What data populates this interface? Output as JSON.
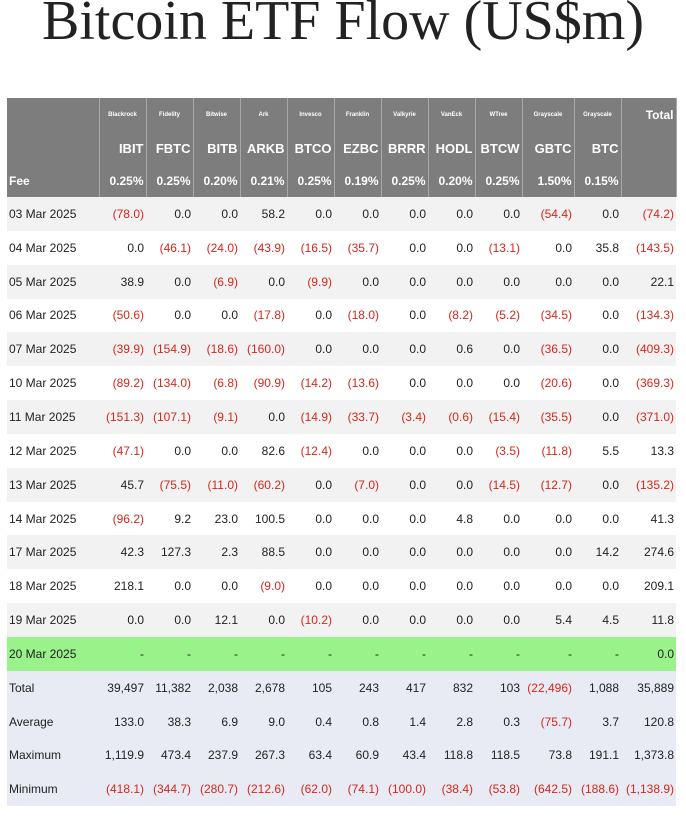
{
  "title": "Bitcoin ETF Flow (US$m)",
  "colors": {
    "header_bg": "#7d7d7d",
    "highlight_row": "#99f28a",
    "negative": "#d4271c",
    "summary_bg": "#e8ebf4"
  },
  "issuers": [
    "Blackrock",
    "Fidelity",
    "Bitwise",
    "Ark",
    "Invesco",
    "Franklin",
    "Valkyrie",
    "VanEck",
    "WTree",
    "Grayscale",
    "Grayscale"
  ],
  "total_header": "Total",
  "tickers": [
    "IBIT",
    "FBTC",
    "BITB",
    "ARKB",
    "BTCO",
    "EZBC",
    "BRRR",
    "HODL",
    "BTCW",
    "GBTC",
    "BTC"
  ],
  "fee_label": "Fee",
  "fees": [
    "0.25%",
    "0.25%",
    "0.20%",
    "0.21%",
    "0.25%",
    "0.19%",
    "0.25%",
    "0.20%",
    "0.25%",
    "1.50%",
    "0.15%"
  ],
  "rows": [
    {
      "date": "03 Mar 2025",
      "cells": [
        "(78.0)",
        "0.0",
        "0.0",
        "58.2",
        "0.0",
        "0.0",
        "0.0",
        "0.0",
        "0.0",
        "(54.4)",
        "0.0",
        "(74.2)"
      ]
    },
    {
      "date": "04 Mar 2025",
      "cells": [
        "0.0",
        "(46.1)",
        "(24.0)",
        "(43.9)",
        "(16.5)",
        "(35.7)",
        "0.0",
        "0.0",
        "(13.1)",
        "0.0",
        "35.8",
        "(143.5)"
      ]
    },
    {
      "date": "05 Mar 2025",
      "cells": [
        "38.9",
        "0.0",
        "(6.9)",
        "0.0",
        "(9.9)",
        "0.0",
        "0.0",
        "0.0",
        "0.0",
        "0.0",
        "0.0",
        "22.1"
      ]
    },
    {
      "date": "06 Mar 2025",
      "cells": [
        "(50.6)",
        "0.0",
        "0.0",
        "(17.8)",
        "0.0",
        "(18.0)",
        "0.0",
        "(8.2)",
        "(5.2)",
        "(34.5)",
        "0.0",
        "(134.3)"
      ]
    },
    {
      "date": "07 Mar 2025",
      "cells": [
        "(39.9)",
        "(154.9)",
        "(18.6)",
        "(160.0)",
        "0.0",
        "0.0",
        "0.0",
        "0.6",
        "0.0",
        "(36.5)",
        "0.0",
        "(409.3)"
      ]
    },
    {
      "date": "10 Mar 2025",
      "cells": [
        "(89.2)",
        "(134.0)",
        "(6.8)",
        "(90.9)",
        "(14.2)",
        "(13.6)",
        "0.0",
        "0.0",
        "0.0",
        "(20.6)",
        "0.0",
        "(369.3)"
      ]
    },
    {
      "date": "11 Mar 2025",
      "cells": [
        "(151.3)",
        "(107.1)",
        "(9.1)",
        "0.0",
        "(14.9)",
        "(33.7)",
        "(3.4)",
        "(0.6)",
        "(15.4)",
        "(35.5)",
        "0.0",
        "(371.0)"
      ]
    },
    {
      "date": "12 Mar 2025",
      "cells": [
        "(47.1)",
        "0.0",
        "0.0",
        "82.6",
        "(12.4)",
        "0.0",
        "0.0",
        "0.0",
        "(3.5)",
        "(11.8)",
        "5.5",
        "13.3"
      ]
    },
    {
      "date": "13 Mar 2025",
      "cells": [
        "45.7",
        "(75.5)",
        "(11.0)",
        "(60.2)",
        "0.0",
        "(7.0)",
        "0.0",
        "0.0",
        "(14.5)",
        "(12.7)",
        "0.0",
        "(135.2)"
      ]
    },
    {
      "date": "14 Mar 2025",
      "cells": [
        "(96.2)",
        "9.2",
        "23.0",
        "100.5",
        "0.0",
        "0.0",
        "0.0",
        "4.8",
        "0.0",
        "0.0",
        "0.0",
        "41.3"
      ]
    },
    {
      "date": "17 Mar 2025",
      "cells": [
        "42.3",
        "127.3",
        "2.3",
        "88.5",
        "0.0",
        "0.0",
        "0.0",
        "0.0",
        "0.0",
        "0.0",
        "14.2",
        "274.6"
      ]
    },
    {
      "date": "18 Mar 2025",
      "cells": [
        "218.1",
        "0.0",
        "0.0",
        "(9.0)",
        "0.0",
        "0.0",
        "0.0",
        "0.0",
        "0.0",
        "0.0",
        "0.0",
        "209.1"
      ]
    },
    {
      "date": "19 Mar 2025",
      "cells": [
        "0.0",
        "0.0",
        "12.1",
        "0.0",
        "(10.2)",
        "0.0",
        "0.0",
        "0.0",
        "0.0",
        "5.4",
        "4.5",
        "11.8"
      ]
    },
    {
      "date": "20 Mar 2025",
      "highlight": true,
      "cells": [
        "-",
        "-",
        "-",
        "-",
        "-",
        "-",
        "-",
        "-",
        "-",
        "-",
        "-",
        "0.0"
      ]
    }
  ],
  "summary": [
    {
      "label": "Total",
      "cells": [
        "39,497",
        "11,382",
        "2,038",
        "2,678",
        "105",
        "243",
        "417",
        "832",
        "103",
        "(22,496)",
        "1,088",
        "35,889"
      ]
    },
    {
      "label": "Average",
      "cells": [
        "133.0",
        "38.3",
        "6.9",
        "9.0",
        "0.4",
        "0.8",
        "1.4",
        "2.8",
        "0.3",
        "(75.7)",
        "3.7",
        "120.8"
      ]
    },
    {
      "label": "Maximum",
      "cells": [
        "1,119.9",
        "473.4",
        "237.9",
        "267.3",
        "63.4",
        "60.9",
        "43.4",
        "118.8",
        "118.5",
        "73.8",
        "191.1",
        "1,373.8"
      ]
    },
    {
      "label": "Minimum",
      "cells": [
        "(418.1)",
        "(344.7)",
        "(280.7)",
        "(212.6)",
        "(62.0)",
        "(74.1)",
        "(100.0)",
        "(38.4)",
        "(53.8)",
        "(642.5)",
        "(188.6)",
        "(1,138.9)"
      ]
    }
  ]
}
